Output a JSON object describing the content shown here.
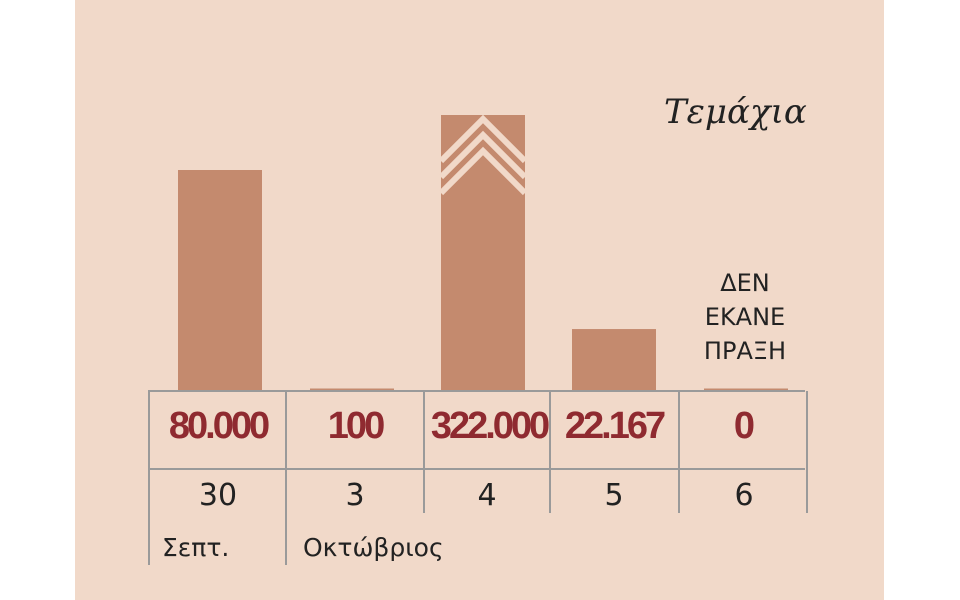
{
  "chart_data": {
    "type": "bar",
    "unit_label": "Τεμάχια",
    "categories": [
      "30",
      "3",
      "4",
      "5",
      "6"
    ],
    "month_labels": [
      {
        "label": "Σεπτ.",
        "starts_at": "30"
      },
      {
        "label": "Οκτώβριος",
        "starts_at": "3"
      }
    ],
    "values": [
      80000,
      100,
      322000,
      22167,
      0
    ],
    "value_labels": [
      "80.000",
      "100",
      "322.000",
      "22.167",
      "0"
    ],
    "axis_break_on": "322.000",
    "annotation": {
      "category": "6",
      "lines": [
        "ΔΕΝ",
        "ΕΚΑΝΕ",
        "ΠΡΑΞΗ"
      ]
    },
    "colors": {
      "bar": "#c48a6e",
      "value_text": "#8f2a30",
      "background": "#f1d9c9",
      "grid": "#9a9a9a"
    },
    "grid": false,
    "legend": "none"
  }
}
